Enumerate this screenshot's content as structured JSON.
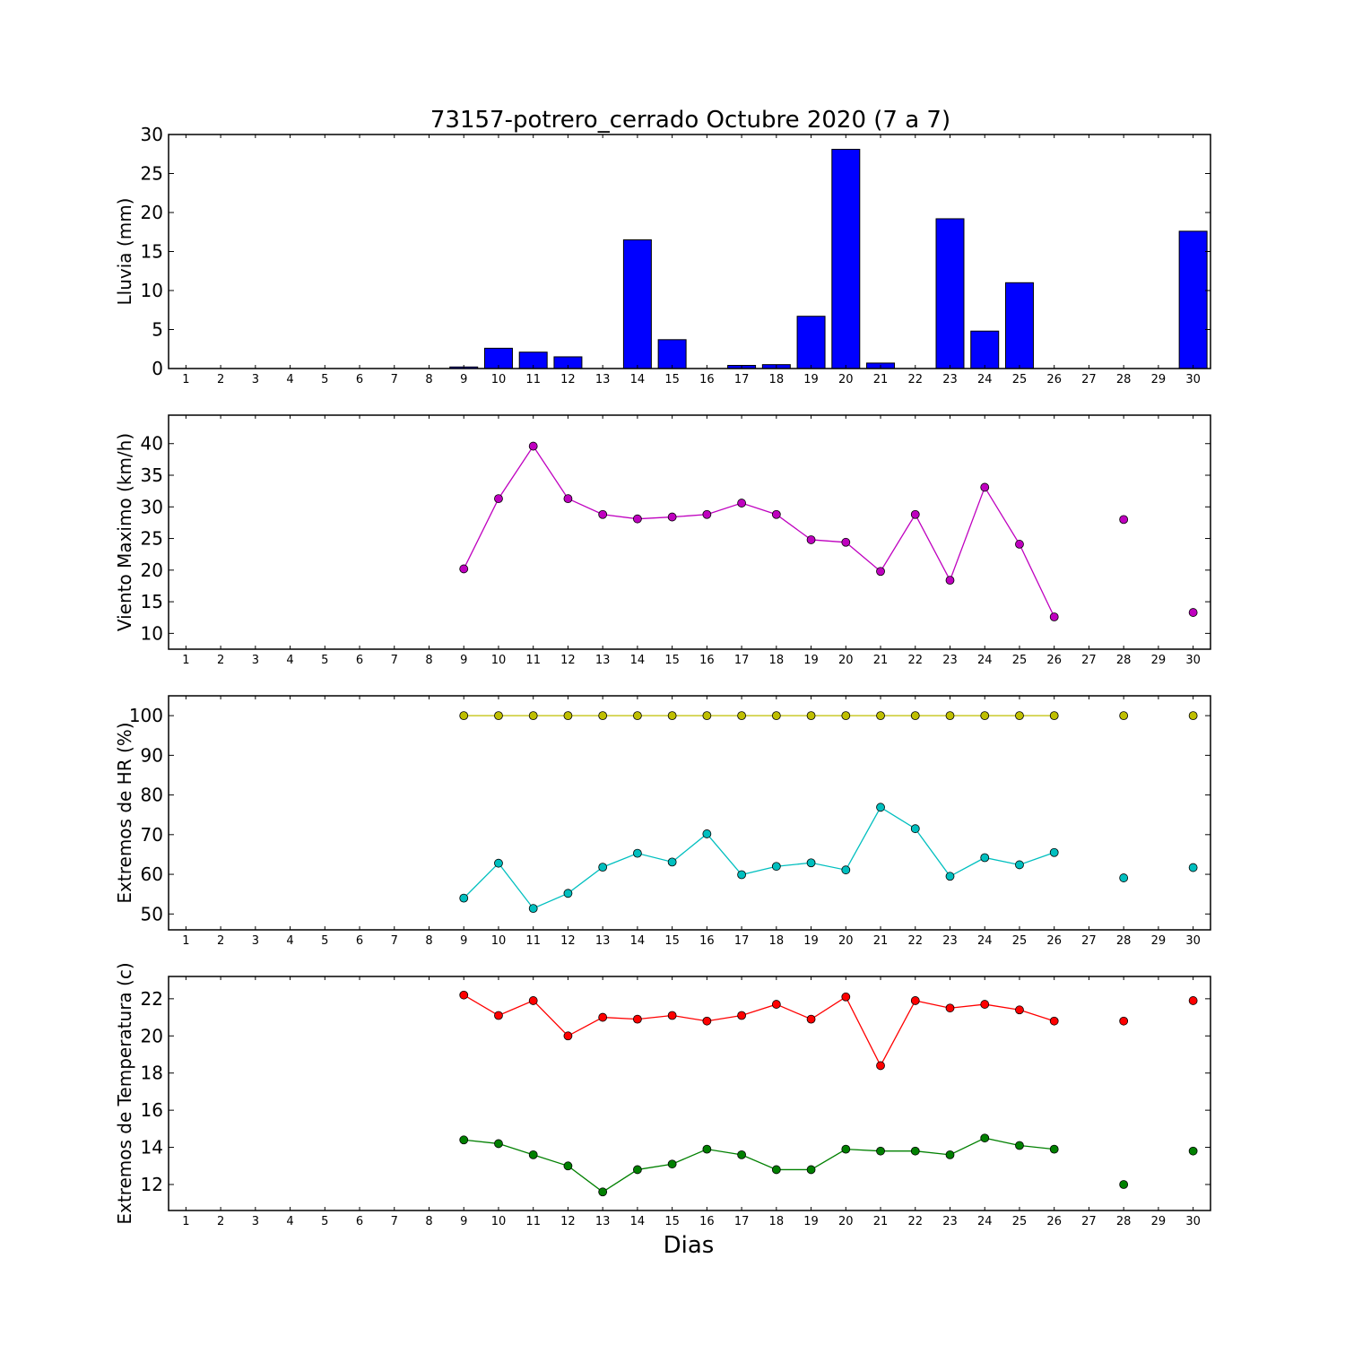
{
  "title": "73157-potrero_cerrado Octubre 2020  (7 a 7)",
  "xlabel": "Dias",
  "x_tick_labels": [
    "1",
    "2",
    "3",
    "4",
    "5",
    "6",
    "7",
    "8",
    "9",
    "10",
    "11",
    "12",
    "13",
    "14",
    "15",
    "16",
    "17",
    "18",
    "19",
    "20",
    "21",
    "22",
    "23",
    "24",
    "25",
    "26",
    "27",
    "28",
    "29",
    "30"
  ],
  "chart_data": [
    {
      "type": "bar",
      "ylabel": "Lluvia (mm)",
      "ylim": [
        0,
        30
      ],
      "yticks": [
        0,
        5,
        10,
        15,
        20,
        25,
        30
      ],
      "grid": false,
      "categories": [
        "1",
        "2",
        "3",
        "4",
        "5",
        "6",
        "7",
        "8",
        "9",
        "10",
        "11",
        "12",
        "13",
        "14",
        "15",
        "16",
        "17",
        "18",
        "19",
        "20",
        "21",
        "22",
        "23",
        "24",
        "25",
        "26",
        "27",
        "28",
        "29",
        "30"
      ],
      "series": [
        {
          "color": "#0000ff",
          "values": [
            0,
            0,
            0,
            0,
            0,
            0,
            0,
            0,
            0.2,
            2.6,
            2.1,
            1.5,
            0,
            16.5,
            3.7,
            0,
            0.4,
            0.5,
            6.7,
            28.1,
            0.7,
            0,
            19.2,
            4.8,
            11.0,
            0,
            0,
            0,
            0,
            17.6
          ]
        }
      ]
    },
    {
      "type": "line",
      "ylabel": "Viento Maximo (km/h)",
      "ylim": [
        7.5,
        44.5
      ],
      "yticks": [
        10,
        15,
        20,
        25,
        30,
        35,
        40
      ],
      "grid": false,
      "categories": [
        "1",
        "2",
        "3",
        "4",
        "5",
        "6",
        "7",
        "8",
        "9",
        "10",
        "11",
        "12",
        "13",
        "14",
        "15",
        "16",
        "17",
        "18",
        "19",
        "20",
        "21",
        "22",
        "23",
        "24",
        "25",
        "26",
        "27",
        "28",
        "29",
        "30"
      ],
      "series": [
        {
          "color": "#bf00bf",
          "values": [
            null,
            null,
            null,
            null,
            null,
            null,
            null,
            null,
            20.2,
            31.3,
            39.6,
            31.3,
            28.8,
            28.1,
            28.4,
            28.8,
            30.6,
            28.8,
            24.8,
            24.4,
            19.8,
            28.8,
            18.4,
            33.1,
            24.1,
            12.6,
            null,
            28.0,
            null,
            13.3
          ]
        }
      ]
    },
    {
      "type": "line",
      "ylabel": "Extremos de HR (%)",
      "ylim": [
        46,
        105
      ],
      "yticks": [
        50,
        60,
        70,
        80,
        90,
        100
      ],
      "grid": false,
      "categories": [
        "1",
        "2",
        "3",
        "4",
        "5",
        "6",
        "7",
        "8",
        "9",
        "10",
        "11",
        "12",
        "13",
        "14",
        "15",
        "16",
        "17",
        "18",
        "19",
        "20",
        "21",
        "22",
        "23",
        "24",
        "25",
        "26",
        "27",
        "28",
        "29",
        "30"
      ],
      "series": [
        {
          "color": "#bfbf00",
          "values": [
            null,
            null,
            null,
            null,
            null,
            null,
            null,
            null,
            100,
            100,
            100,
            100,
            100,
            100,
            100,
            100,
            100,
            100,
            100,
            100,
            100,
            100,
            100,
            100,
            100,
            100,
            null,
            100,
            null,
            100
          ]
        },
        {
          "color": "#00bfbf",
          "values": [
            null,
            null,
            null,
            null,
            null,
            null,
            null,
            null,
            54,
            62.8,
            51.4,
            55.2,
            61.8,
            65.3,
            63.1,
            70.2,
            59.9,
            62,
            62.9,
            61.1,
            76.9,
            71.5,
            59.5,
            64.2,
            62.4,
            65.5,
            null,
            59.1,
            null,
            61.7
          ]
        }
      ]
    },
    {
      "type": "line",
      "ylabel": "Extremos de Temperatura (c)",
      "ylim": [
        10.6,
        23.2
      ],
      "yticks": [
        12,
        14,
        16,
        18,
        20,
        22
      ],
      "grid": false,
      "categories": [
        "1",
        "2",
        "3",
        "4",
        "5",
        "6",
        "7",
        "8",
        "9",
        "10",
        "11",
        "12",
        "13",
        "14",
        "15",
        "16",
        "17",
        "18",
        "19",
        "20",
        "21",
        "22",
        "23",
        "24",
        "25",
        "26",
        "27",
        "28",
        "29",
        "30"
      ],
      "series": [
        {
          "color": "#ff0000",
          "values": [
            null,
            null,
            null,
            null,
            null,
            null,
            null,
            null,
            22.2,
            21.1,
            21.9,
            20,
            21,
            20.9,
            21.1,
            20.8,
            21.1,
            21.7,
            20.9,
            22.1,
            18.4,
            21.9,
            21.5,
            21.7,
            21.4,
            20.8,
            null,
            20.8,
            null,
            21.9
          ]
        },
        {
          "color": "#008000",
          "values": [
            null,
            null,
            null,
            null,
            null,
            null,
            null,
            null,
            14.4,
            14.2,
            13.6,
            13,
            11.6,
            12.8,
            13.1,
            13.9,
            13.6,
            12.8,
            12.8,
            13.9,
            13.8,
            13.8,
            13.6,
            14.5,
            14.1,
            13.9,
            null,
            12,
            null,
            13.8
          ]
        }
      ]
    }
  ]
}
